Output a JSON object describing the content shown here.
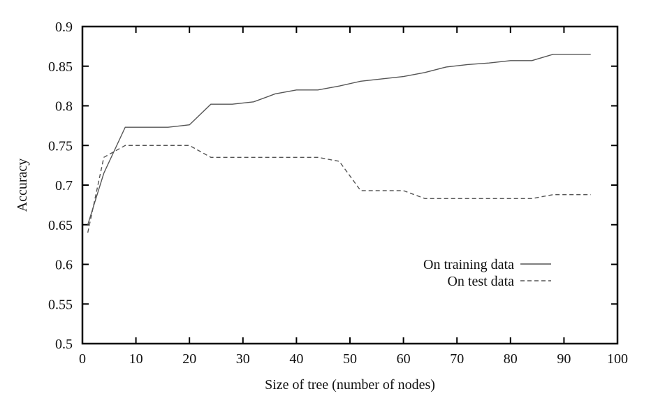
{
  "chart_data": {
    "type": "line",
    "title": "",
    "xlabel": "Size of tree (number of nodes)",
    "ylabel": "Accuracy",
    "xlim": [
      0,
      100
    ],
    "ylim": [
      0.5,
      0.9
    ],
    "xticks": [
      0,
      10,
      20,
      30,
      40,
      50,
      60,
      70,
      80,
      90,
      100
    ],
    "yticks": [
      0.5,
      0.55,
      0.6,
      0.65,
      0.7,
      0.75,
      0.8,
      0.85,
      0.9
    ],
    "xtick_labels": [
      "0",
      "10",
      "20",
      "30",
      "40",
      "50",
      "60",
      "70",
      "80",
      "90",
      "100"
    ],
    "ytick_labels": [
      "0.5",
      "0.55",
      "0.6",
      "0.65",
      "0.7",
      "0.75",
      "0.8",
      "0.85",
      "0.9"
    ],
    "grid": false,
    "legend_position": "bottom-right",
    "series": [
      {
        "name": "On training data",
        "style": "solid",
        "color": "#555555",
        "x": [
          1,
          4,
          8,
          12,
          16,
          20,
          24,
          28,
          32,
          36,
          40,
          44,
          48,
          52,
          56,
          60,
          64,
          68,
          72,
          76,
          80,
          84,
          88,
          92,
          95
        ],
        "y": [
          0.65,
          0.715,
          0.773,
          0.773,
          0.773,
          0.776,
          0.802,
          0.802,
          0.805,
          0.815,
          0.82,
          0.82,
          0.825,
          0.831,
          0.834,
          0.837,
          0.842,
          0.849,
          0.852,
          0.854,
          0.857,
          0.857,
          0.865,
          0.865,
          0.865
        ]
      },
      {
        "name": "On test data",
        "style": "dashed",
        "color": "#555555",
        "x": [
          1,
          4,
          8,
          12,
          16,
          20,
          24,
          28,
          32,
          36,
          40,
          44,
          48,
          52,
          56,
          60,
          64,
          68,
          72,
          76,
          80,
          84,
          88,
          92,
          95
        ],
        "y": [
          0.64,
          0.735,
          0.75,
          0.75,
          0.75,
          0.75,
          0.735,
          0.735,
          0.735,
          0.735,
          0.735,
          0.735,
          0.73,
          0.693,
          0.693,
          0.693,
          0.683,
          0.683,
          0.683,
          0.683,
          0.683,
          0.683,
          0.688,
          0.688,
          0.688
        ]
      }
    ]
  }
}
